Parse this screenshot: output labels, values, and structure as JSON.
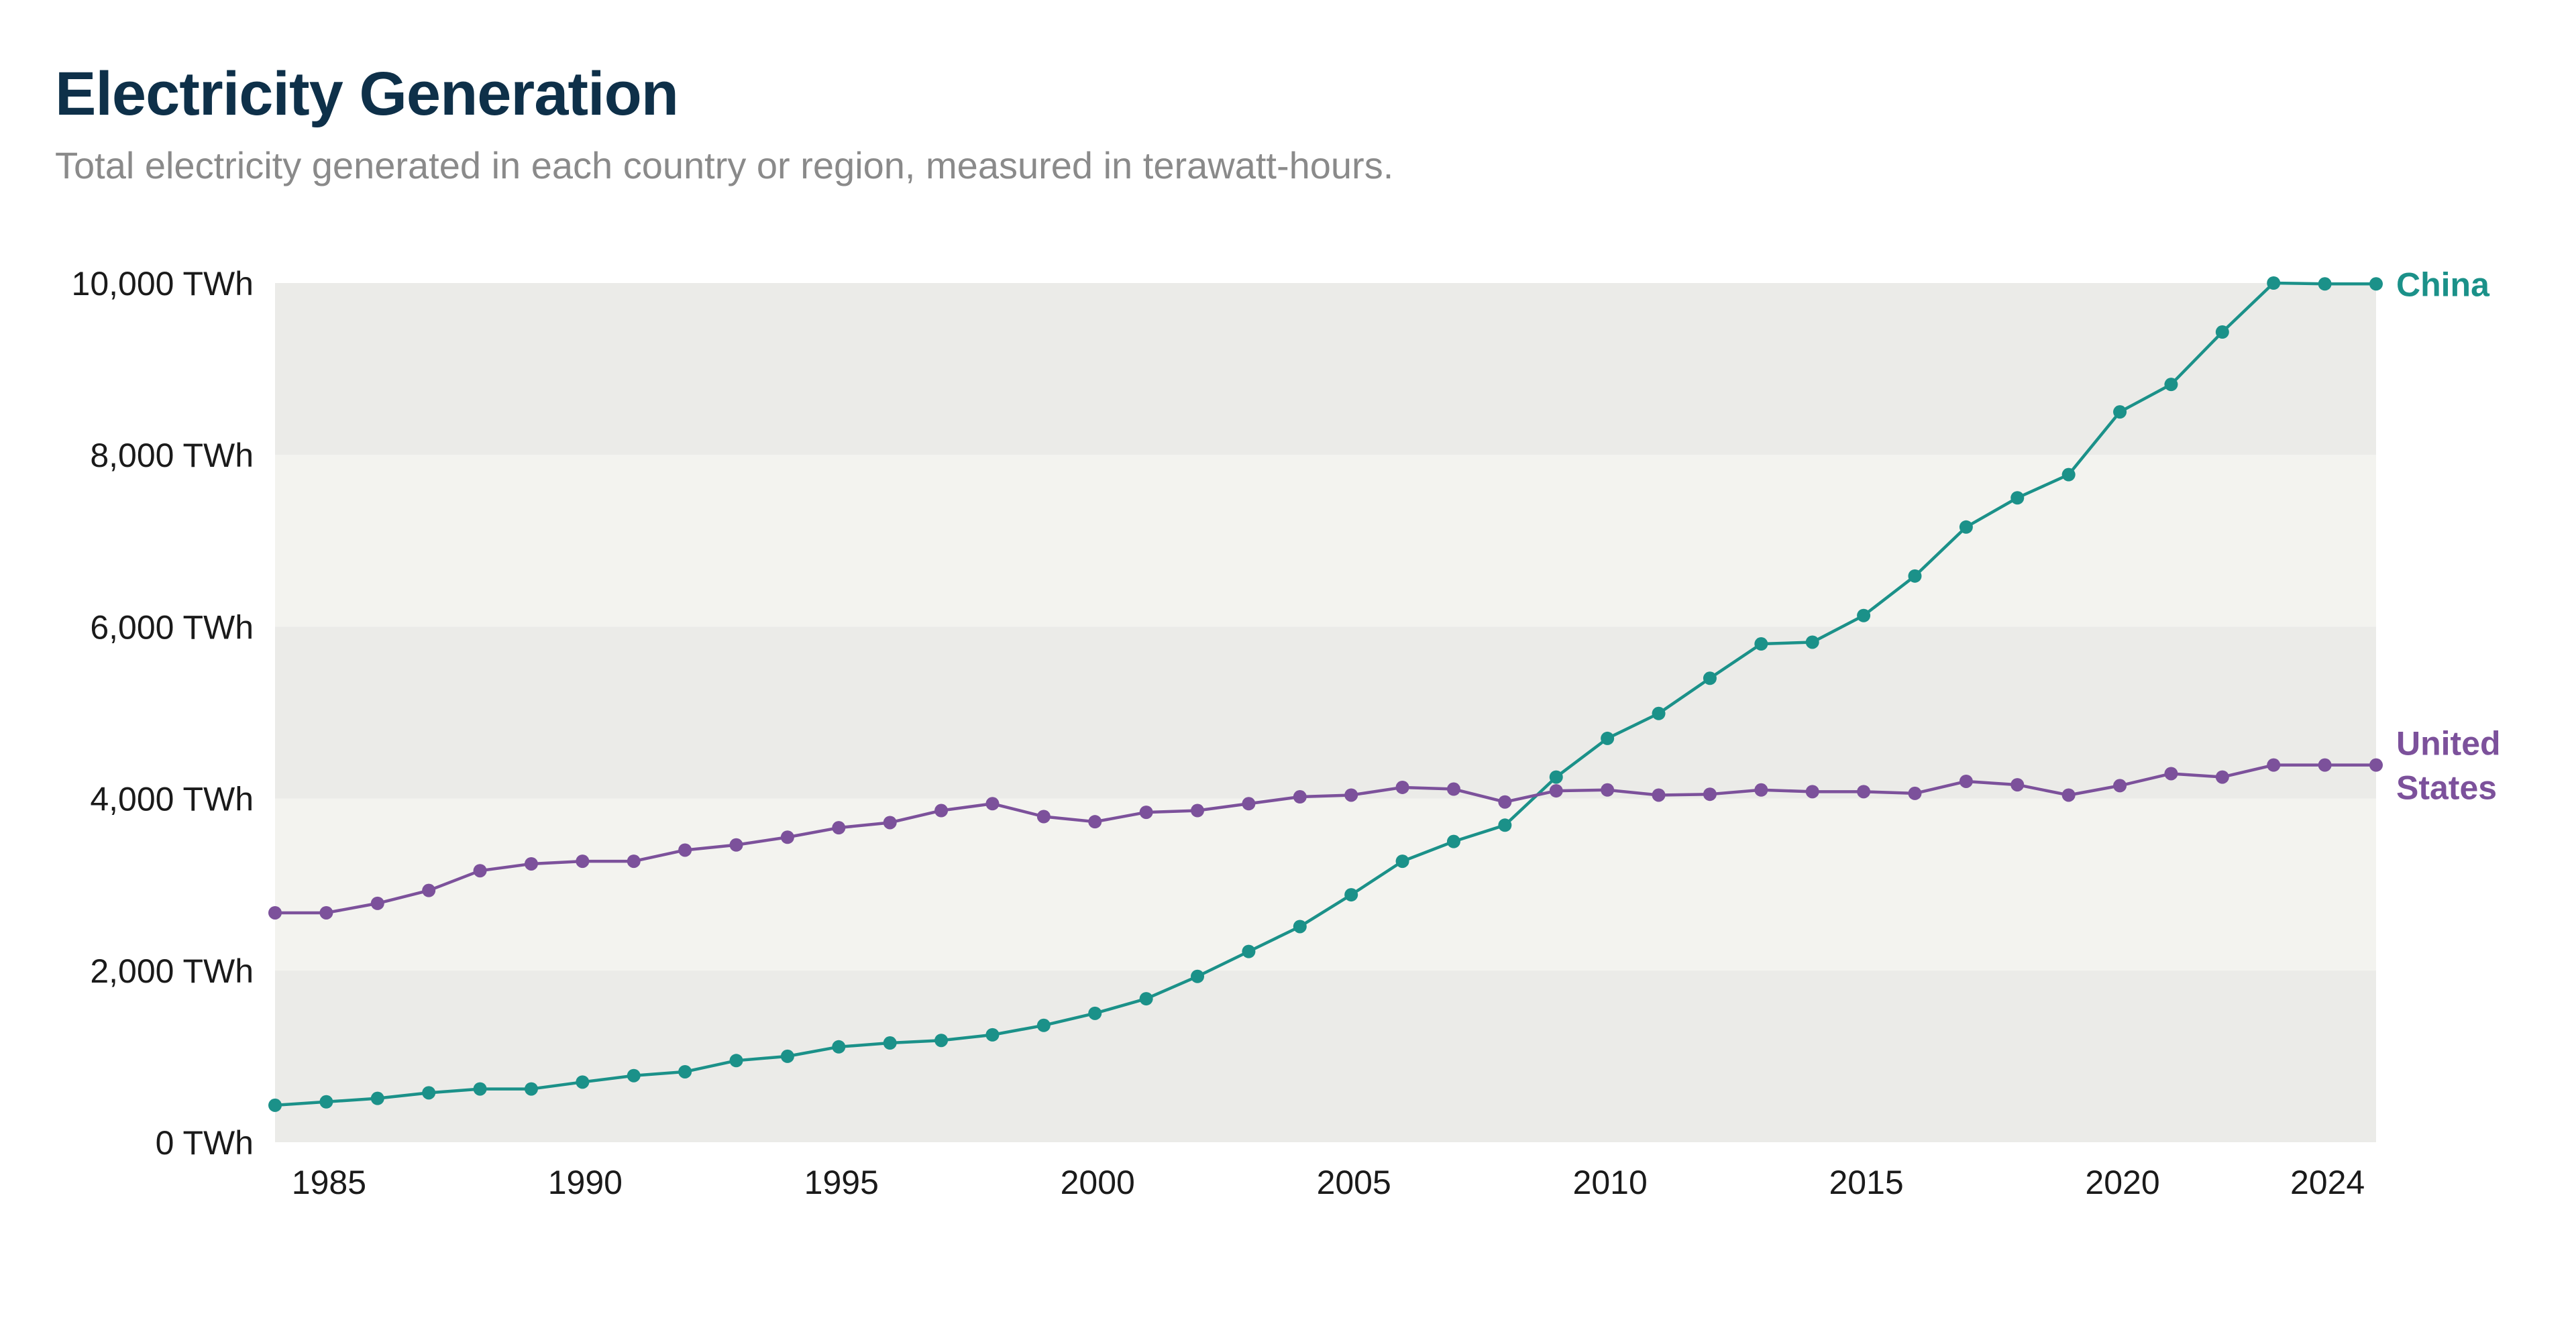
{
  "title": "Electricity Generation",
  "subtitle": "Total electricity generated in each country or region, measured in terawatt-hours.",
  "colors": {
    "china": "#1b9189",
    "us": "#7c519b",
    "band_dark": "#ebebe8",
    "band_light": "#f3f3ef"
  },
  "chart_data": {
    "type": "line",
    "title": "Electricity Generation",
    "ylim": [
      0,
      10000
    ],
    "xlim": [
      1984,
      2025
    ],
    "y_ticks": [
      {
        "value": 0,
        "label": "0 TWh"
      },
      {
        "value": 2000,
        "label": "2,000 TWh"
      },
      {
        "value": 4000,
        "label": "4,000 TWh"
      },
      {
        "value": 6000,
        "label": "6,000 TWh"
      },
      {
        "value": 8000,
        "label": "8,000 TWh"
      },
      {
        "value": 10000,
        "label": "10,000 TWh"
      }
    ],
    "x_ticks": [
      {
        "value": 1985,
        "label": "1985"
      },
      {
        "value": 1990,
        "label": "1990"
      },
      {
        "value": 1995,
        "label": "1995"
      },
      {
        "value": 2000,
        "label": "2000"
      },
      {
        "value": 2005,
        "label": "2005"
      },
      {
        "value": 2010,
        "label": "2010"
      },
      {
        "value": 2015,
        "label": "2015"
      },
      {
        "value": 2020,
        "label": "2020"
      },
      {
        "value": 2024,
        "label": "2024"
      }
    ],
    "grid": "alternating horizontal bands",
    "legend": "inline labels at line ends",
    "x": [
      1984,
      1985,
      1986,
      1987,
      1988,
      1989,
      1990,
      1991,
      1992,
      1993,
      1994,
      1995,
      1996,
      1997,
      1998,
      1999,
      2000,
      2001,
      2002,
      2003,
      2004,
      2005,
      2006,
      2007,
      2008,
      2009,
      2010,
      2011,
      2012,
      2013,
      2014,
      2015,
      2016,
      2017,
      2018,
      2019,
      2020,
      2021,
      2022,
      2023,
      2024,
      2025
    ],
    "series": [
      {
        "name": "China",
        "color_key": "china",
        "label_lines": [
          "China"
        ],
        "values": [
          430,
          470,
          510,
          575,
          620,
          620,
          700,
          775,
          820,
          950,
          1000,
          1110,
          1155,
          1185,
          1250,
          1360,
          1500,
          1670,
          1930,
          2220,
          2510,
          2880,
          3270,
          3500,
          3690,
          4250,
          4700,
          4990,
          5400,
          5800,
          5820,
          6130,
          6590,
          7160,
          7500,
          7770,
          8500,
          8820,
          9430,
          10000,
          9990,
          9990
        ]
      },
      {
        "name": "United States",
        "color_key": "us",
        "label_lines": [
          "United",
          "States"
        ],
        "values": [
          2670,
          2670,
          2780,
          2930,
          3160,
          3240,
          3270,
          3270,
          3400,
          3460,
          3550,
          3660,
          3720,
          3860,
          3940,
          3790,
          3730,
          3840,
          3860,
          3940,
          4020,
          4040,
          4130,
          4110,
          3960,
          4090,
          4100,
          4040,
          4050,
          4100,
          4080,
          4080,
          4060,
          4200,
          4160,
          4040,
          4150,
          4290,
          4250,
          4390,
          4390,
          4390
        ]
      }
    ]
  }
}
